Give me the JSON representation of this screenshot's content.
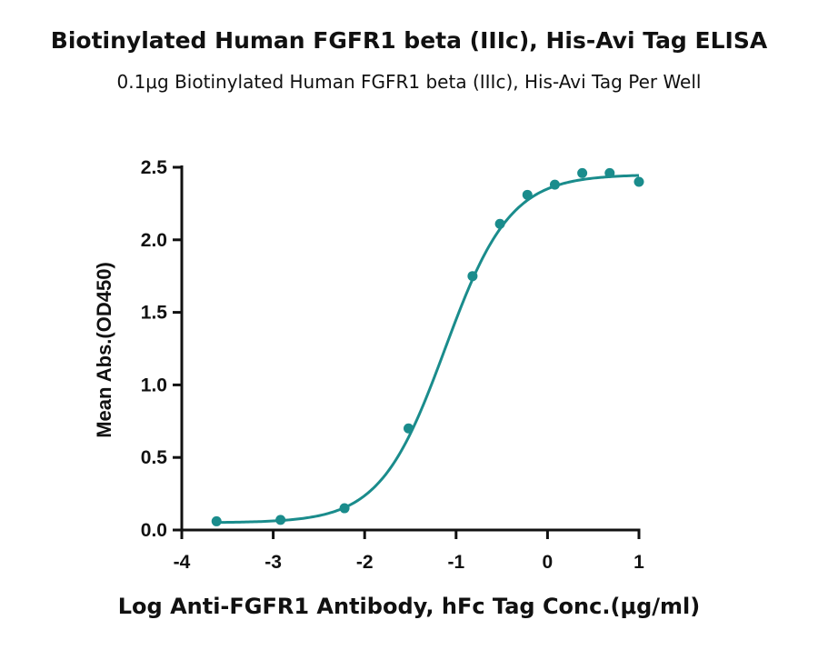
{
  "chart_data": {
    "type": "scatter",
    "title": "Biotinylated Human FGFR1 beta (IIIc), His-Avi Tag ELISA",
    "subtitle": "0.1μg Biotinylated Human FGFR1 beta (IIIc), His-Avi Tag Per Well",
    "xlabel": "Log Anti-FGFR1 Antibody, hFc Tag Conc.(μg/ml)",
    "ylabel": "Mean Abs.(OD450)",
    "xlim": [
      -4,
      1
    ],
    "ylim": [
      0,
      2.5
    ],
    "x_ticks": [
      "-4",
      "-3",
      "-2",
      "-1",
      "0",
      "1"
    ],
    "y_ticks": [
      "0.0",
      "0.5",
      "1.0",
      "1.5",
      "2.0",
      "2.5"
    ],
    "grid": false,
    "series": [
      {
        "color": "#1a8c8c",
        "points": [
          {
            "x": -3.62,
            "y": 0.06
          },
          {
            "x": -2.92,
            "y": 0.07
          },
          {
            "x": -2.22,
            "y": 0.15
          },
          {
            "x": -1.52,
            "y": 0.7
          },
          {
            "x": -0.82,
            "y": 1.75
          },
          {
            "x": -0.52,
            "y": 2.11
          },
          {
            "x": -0.22,
            "y": 2.31
          },
          {
            "x": 0.08,
            "y": 2.38
          },
          {
            "x": 0.38,
            "y": 2.46
          },
          {
            "x": 0.68,
            "y": 2.46
          },
          {
            "x": 1.0,
            "y": 2.4
          }
        ],
        "fit": {
          "model": "4PL",
          "bottom": 0.05,
          "top": 2.45,
          "logEC50": -1.12,
          "hill": 1.22
        }
      }
    ]
  }
}
